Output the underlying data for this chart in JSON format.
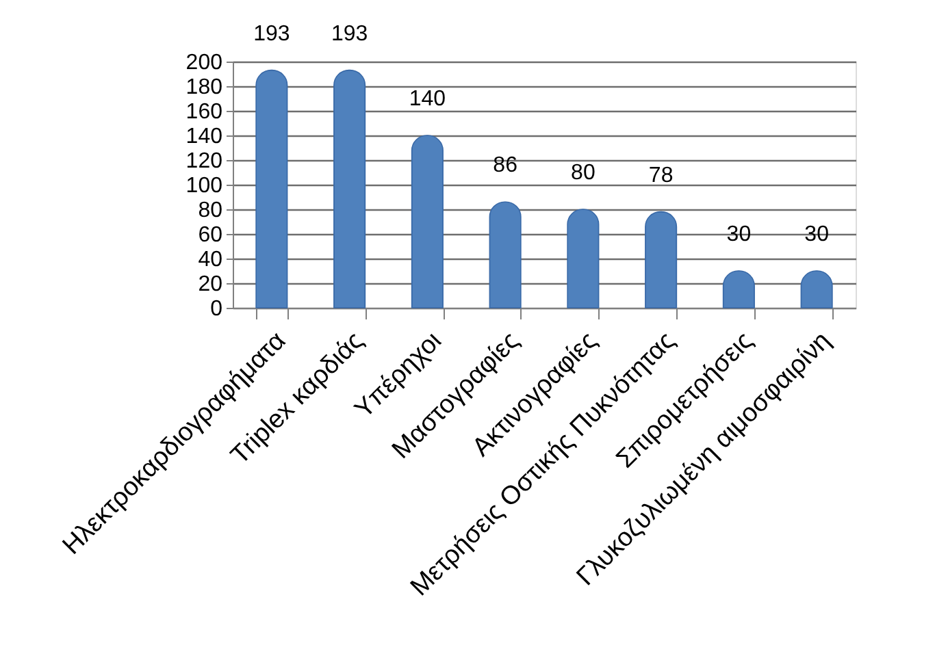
{
  "chart_data": {
    "type": "bar",
    "categories": [
      "Ηλεκτροκαρδιογραφήματα",
      "Triplex καρδιάς",
      "Υπέρηχοι",
      "Μαστογραφίες",
      "Ακτινογραφίες",
      "Μετρήσεις Οστικής Πυκνότητας",
      "Σπιρομετρήσεις",
      "Γλυκοζυλιωμένη αιμοσφαιρίνη"
    ],
    "values": [
      193,
      193,
      140,
      86,
      80,
      78,
      30,
      30
    ],
    "color": "#4f81bd",
    "ylim": [
      0,
      200
    ],
    "yticks": [
      0,
      20,
      40,
      60,
      80,
      100,
      120,
      140,
      160,
      180,
      200
    ],
    "grid": "y",
    "data_labels": true
  }
}
